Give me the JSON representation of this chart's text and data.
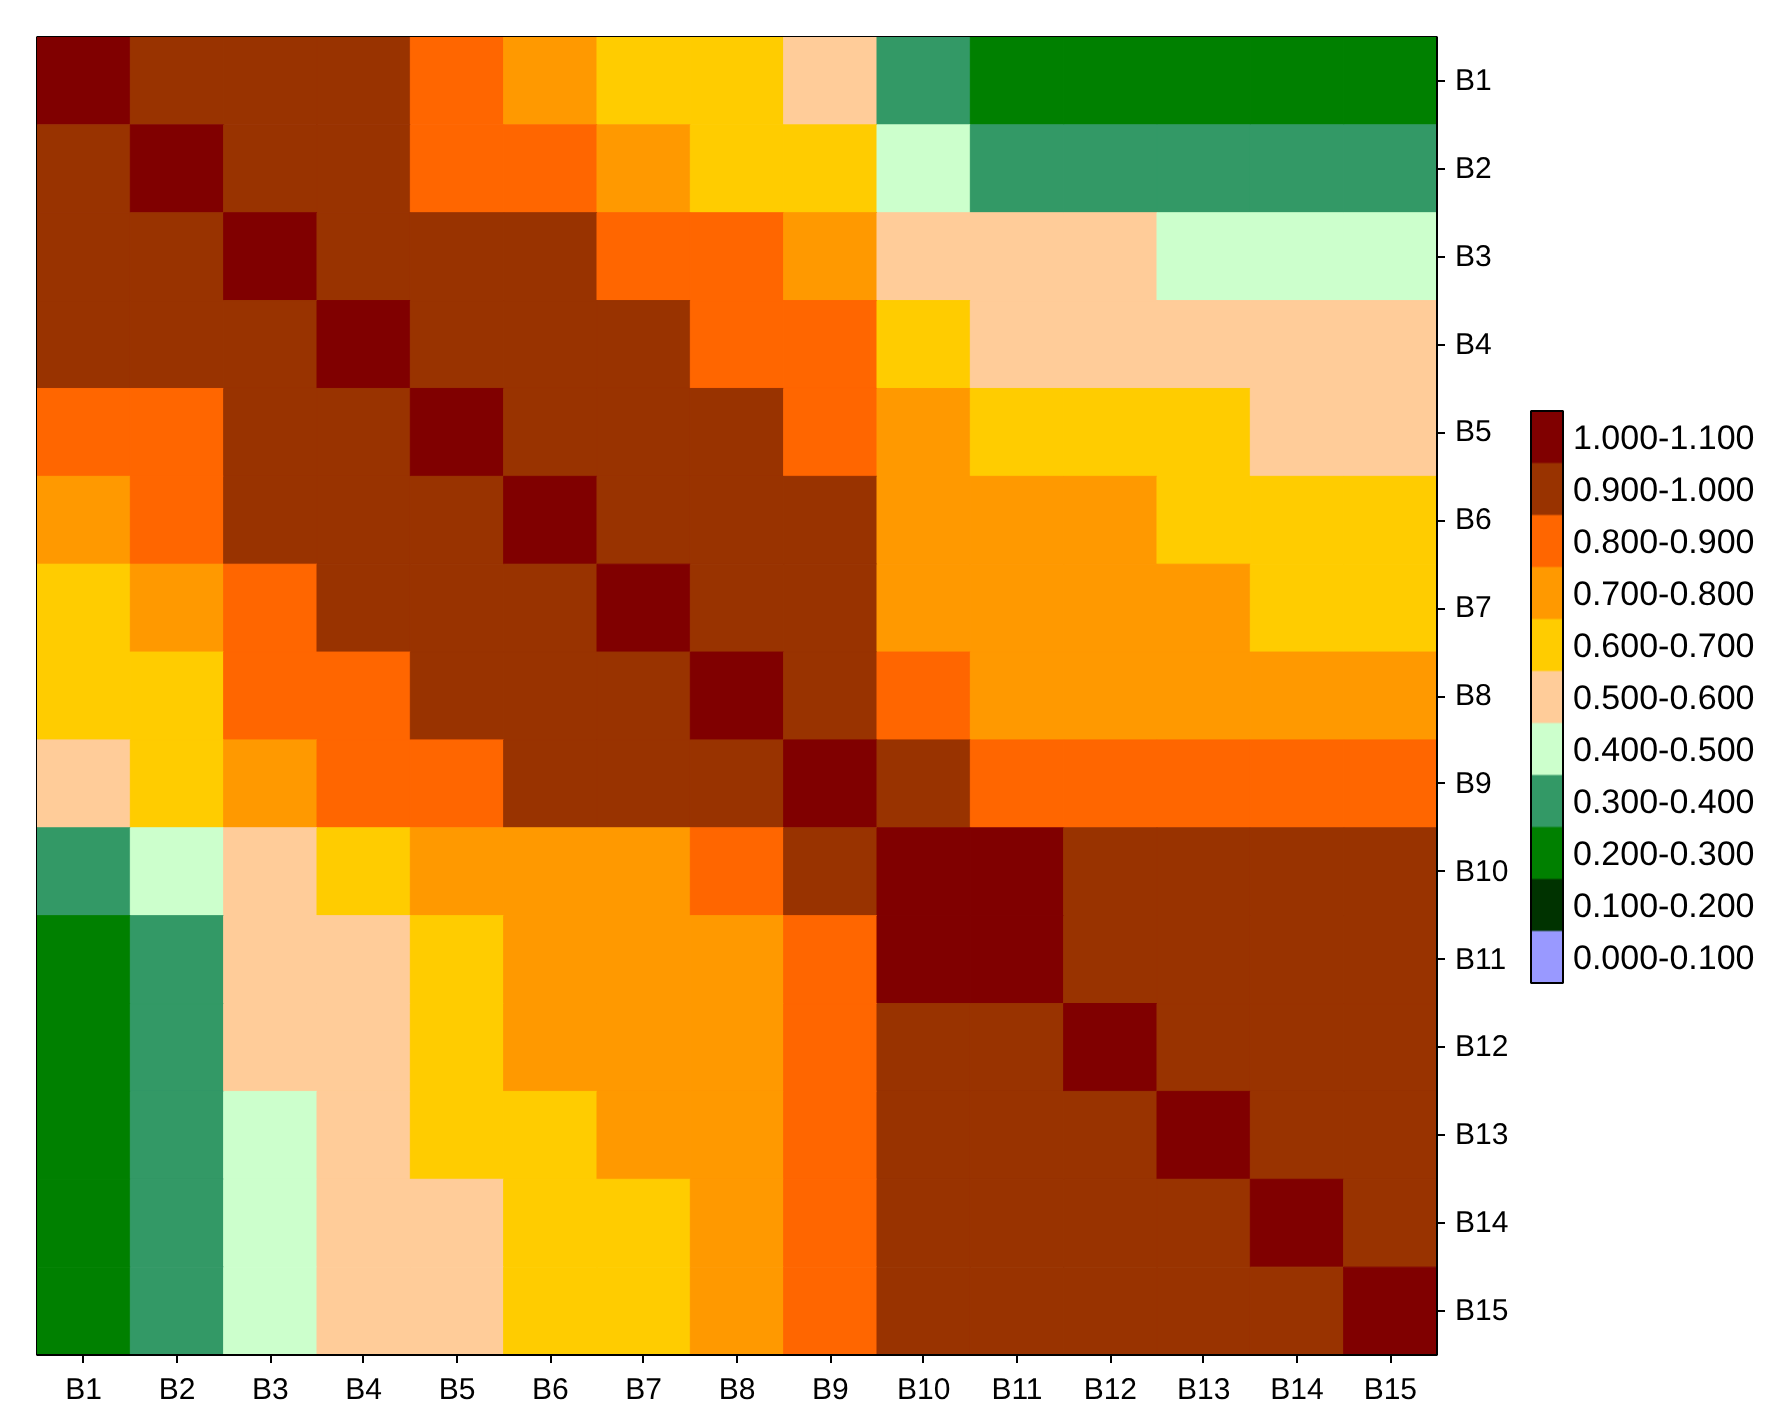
{
  "chart_data": {
    "type": "heatmap",
    "categories": [
      "B1",
      "B2",
      "B3",
      "B4",
      "B5",
      "B6",
      "B7",
      "B8",
      "B9",
      "B10",
      "B11",
      "B12",
      "B13",
      "B14",
      "B15"
    ],
    "y_categories": [
      "B1",
      "B2",
      "B3",
      "B4",
      "B5",
      "B6",
      "B7",
      "B8",
      "B9",
      "B10",
      "B11",
      "B12",
      "B13",
      "B14",
      "B15"
    ],
    "cells": [
      [
        1.0,
        0.95,
        0.92,
        0.9,
        0.85,
        0.75,
        0.7,
        0.65,
        0.55,
        0.35,
        0.3,
        0.25,
        0.25,
        0.25,
        0.25
      ],
      [
        0.95,
        1.0,
        0.95,
        0.93,
        0.88,
        0.82,
        0.75,
        0.7,
        0.62,
        0.45,
        0.35,
        0.35,
        0.35,
        0.35,
        0.35
      ],
      [
        0.92,
        0.95,
        1.0,
        0.95,
        0.93,
        0.9,
        0.85,
        0.8,
        0.72,
        0.55,
        0.5,
        0.5,
        0.45,
        0.45,
        0.45
      ],
      [
        0.9,
        0.93,
        0.95,
        1.0,
        0.95,
        0.93,
        0.92,
        0.88,
        0.8,
        0.65,
        0.6,
        0.58,
        0.55,
        0.55,
        0.55
      ],
      [
        0.85,
        0.88,
        0.93,
        0.95,
        1.0,
        0.95,
        0.93,
        0.92,
        0.85,
        0.72,
        0.68,
        0.65,
        0.62,
        0.6,
        0.6
      ],
      [
        0.75,
        0.82,
        0.9,
        0.93,
        0.95,
        1.0,
        0.97,
        0.95,
        0.9,
        0.75,
        0.72,
        0.72,
        0.68,
        0.65,
        0.62
      ],
      [
        0.7,
        0.75,
        0.85,
        0.92,
        0.93,
        0.97,
        1.0,
        0.98,
        0.92,
        0.78,
        0.75,
        0.75,
        0.72,
        0.7,
        0.68
      ],
      [
        0.65,
        0.7,
        0.8,
        0.88,
        0.92,
        0.95,
        0.98,
        1.0,
        0.95,
        0.82,
        0.78,
        0.78,
        0.75,
        0.75,
        0.72
      ],
      [
        0.55,
        0.62,
        0.72,
        0.8,
        0.85,
        0.9,
        0.92,
        0.95,
        1.0,
        0.92,
        0.88,
        0.87,
        0.87,
        0.87,
        0.85
      ],
      [
        0.35,
        0.45,
        0.55,
        0.65,
        0.72,
        0.75,
        0.78,
        0.82,
        0.92,
        1.0,
        1.0,
        0.97,
        0.95,
        0.93,
        0.92
      ],
      [
        0.3,
        0.35,
        0.5,
        0.6,
        0.68,
        0.72,
        0.75,
        0.78,
        0.88,
        1.0,
        1.0,
        0.98,
        0.95,
        0.95,
        0.93
      ],
      [
        0.25,
        0.35,
        0.5,
        0.58,
        0.65,
        0.72,
        0.75,
        0.78,
        0.87,
        0.97,
        0.98,
        1.0,
        0.98,
        0.96,
        0.95
      ],
      [
        0.25,
        0.35,
        0.45,
        0.55,
        0.62,
        0.68,
        0.72,
        0.75,
        0.87,
        0.95,
        0.95,
        0.98,
        1.0,
        0.98,
        0.96
      ],
      [
        0.25,
        0.35,
        0.45,
        0.55,
        0.6,
        0.65,
        0.7,
        0.75,
        0.87,
        0.93,
        0.95,
        0.96,
        0.98,
        1.0,
        0.98
      ],
      [
        0.25,
        0.35,
        0.45,
        0.55,
        0.6,
        0.62,
        0.68,
        0.72,
        0.85,
        0.92,
        0.93,
        0.95,
        0.96,
        0.98,
        1.0
      ]
    ],
    "clim": [
      0.0,
      1.1
    ],
    "colors": [
      "#9999ff",
      "#003300",
      "#008000",
      "#339966",
      "#ccffcc",
      "#ffcc99",
      "#ffcc00",
      "#ff9900",
      "#ff6600",
      "#993300",
      "#800000"
    ],
    "cticks": [
      {
        "value": 0.05,
        "label": "0.000-0.100"
      },
      {
        "value": 0.15,
        "label": "0.100-0.200"
      },
      {
        "value": 0.25,
        "label": "0.200-0.300"
      },
      {
        "value": 0.35,
        "label": "0.300-0.400"
      },
      {
        "value": 0.45,
        "label": "0.400-0.500"
      },
      {
        "value": 0.55,
        "label": "0.500-0.600"
      },
      {
        "value": 0.65,
        "label": "0.600-0.700"
      },
      {
        "value": 0.75,
        "label": "0.700-0.800"
      },
      {
        "value": 0.85,
        "label": "0.800-0.900"
      },
      {
        "value": 0.95,
        "label": "0.900-1.000"
      },
      {
        "value": 1.05,
        "label": "1.000-1.100"
      }
    ]
  }
}
